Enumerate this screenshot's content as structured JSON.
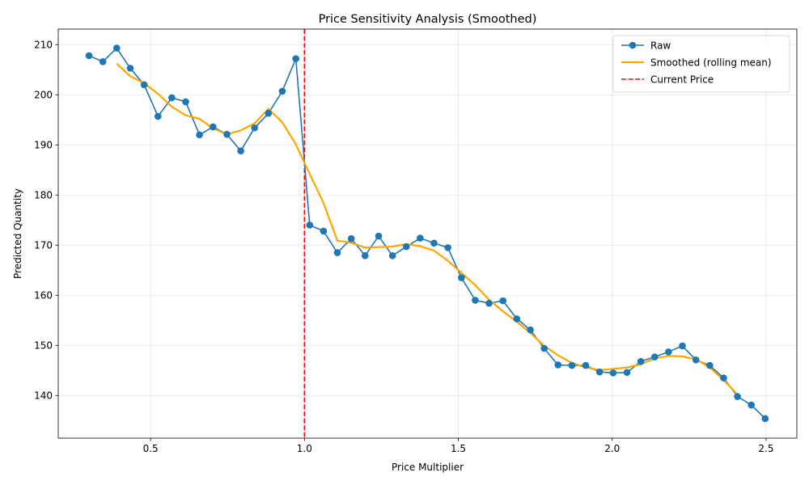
{
  "chart_data": {
    "type": "line",
    "title": "Price Sensitivity Analysis (Smoothed)",
    "xlabel": "Price Multiplier",
    "ylabel": "Predicted Quantity",
    "xlim": [
      0.2,
      2.6
    ],
    "ylim": [
      131.5,
      213.1
    ],
    "xticks": [
      0.5,
      1.0,
      1.5,
      2.0,
      2.5
    ],
    "xtick_labels": [
      "0.5",
      "1.0",
      "1.5",
      "2.0",
      "2.5"
    ],
    "yticks": [
      140,
      150,
      160,
      170,
      180,
      190,
      200,
      210
    ],
    "ytick_labels": [
      "140",
      "150",
      "160",
      "170",
      "180",
      "190",
      "200",
      "210"
    ],
    "grid": true,
    "legend_position": "top-right",
    "series": [
      {
        "name": "Raw",
        "color": "#1f77b4",
        "marker": "circle",
        "x": [
          0.3,
          0.345,
          0.39,
          0.434,
          0.479,
          0.524,
          0.569,
          0.614,
          0.659,
          0.703,
          0.748,
          0.793,
          0.838,
          0.883,
          0.928,
          0.972,
          1.017,
          1.062,
          1.107,
          1.152,
          1.197,
          1.241,
          1.286,
          1.331,
          1.376,
          1.421,
          1.466,
          1.51,
          1.555,
          1.6,
          1.645,
          1.69,
          1.734,
          1.779,
          1.824,
          1.869,
          1.914,
          1.959,
          2.003,
          2.048,
          2.093,
          2.138,
          2.183,
          2.228,
          2.272,
          2.317,
          2.362,
          2.407,
          2.452,
          2.497
        ],
        "y": [
          207.8,
          206.6,
          209.3,
          205.3,
          202.0,
          195.7,
          199.4,
          198.6,
          192.0,
          193.6,
          192.1,
          188.8,
          193.4,
          196.3,
          200.7,
          207.2,
          174.0,
          172.8,
          168.5,
          171.3,
          167.9,
          171.8,
          167.9,
          169.7,
          171.4,
          170.4,
          169.5,
          163.5,
          159.0,
          158.4,
          158.9,
          155.3,
          153.1,
          149.4,
          146.1,
          146.0,
          146.0,
          144.7,
          144.5,
          144.6,
          146.8,
          147.7,
          148.7,
          149.9,
          147.1,
          146.0,
          143.5,
          139.8,
          138.1,
          135.4
        ]
      },
      {
        "name": "Smoothed (rolling mean)",
        "color": "#ffa500",
        "x": [
          0.39,
          0.434,
          0.479,
          0.524,
          0.569,
          0.614,
          0.659,
          0.703,
          0.748,
          0.793,
          0.838,
          0.883,
          0.928,
          0.972,
          1.017,
          1.062,
          1.107,
          1.152,
          1.197,
          1.241,
          1.286,
          1.331,
          1.376,
          1.421,
          1.466,
          1.51,
          1.555,
          1.6,
          1.645,
          1.69,
          1.734,
          1.779,
          1.824,
          1.869,
          1.914,
          1.959,
          2.003,
          2.048,
          2.093,
          2.138,
          2.183,
          2.228,
          2.272,
          2.317,
          2.362,
          2.407
        ],
        "y": [
          206.2,
          203.7,
          202.3,
          200.2,
          197.6,
          195.9,
          195.2,
          193.3,
          192.1,
          192.9,
          194.3,
          197.2,
          194.5,
          190.1,
          184.2,
          178.4,
          170.9,
          170.5,
          169.5,
          169.6,
          169.7,
          170.2,
          169.8,
          168.9,
          166.9,
          164.5,
          162.0,
          159.1,
          156.8,
          154.7,
          152.5,
          149.9,
          148.0,
          146.5,
          145.6,
          145.1,
          145.3,
          145.6,
          146.2,
          147.4,
          147.9,
          147.8,
          147.2,
          145.6,
          143.1,
          140.2
        ]
      }
    ],
    "reference_line": {
      "name": "Current Price",
      "color": "#ff0000",
      "style": "dashed",
      "x": 1.0
    }
  }
}
